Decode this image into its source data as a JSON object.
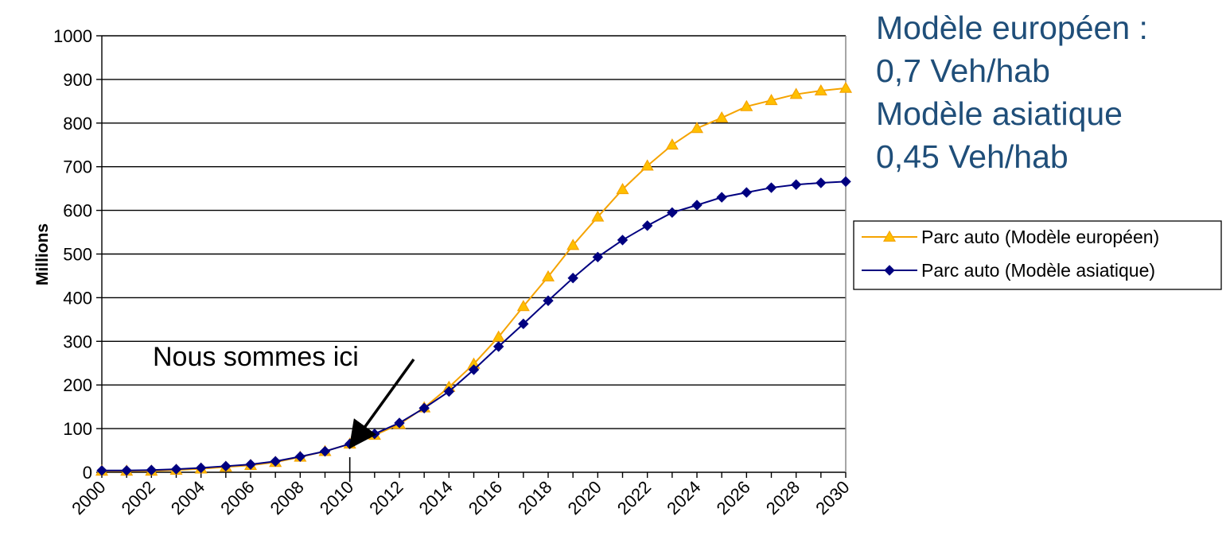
{
  "chart_data": {
    "type": "line",
    "title": "",
    "xlabel": "",
    "ylabel": "Millions",
    "ylim": [
      0,
      1000
    ],
    "yticks": [
      0,
      100,
      200,
      300,
      400,
      500,
      600,
      700,
      800,
      900,
      1000
    ],
    "xlim": [
      2000,
      2030
    ],
    "xticks": [
      2000,
      2002,
      2004,
      2006,
      2008,
      2010,
      2012,
      2014,
      2016,
      2018,
      2020,
      2022,
      2024,
      2026,
      2028,
      2030
    ],
    "grid": "horizontal",
    "legend_position": "right",
    "series": [
      {
        "name": "Parc auto (Modèle européen)",
        "color": "#f5a300",
        "marker": "triangle",
        "x": [
          2000,
          2001,
          2002,
          2003,
          2004,
          2005,
          2006,
          2007,
          2008,
          2009,
          2010,
          2011,
          2012,
          2013,
          2014,
          2015,
          2016,
          2017,
          2018,
          2019,
          2020,
          2021,
          2022,
          2023,
          2024,
          2025,
          2026,
          2027,
          2028,
          2029,
          2030
        ],
        "values": [
          3,
          3,
          3,
          5,
          8,
          12,
          16,
          23,
          35,
          48,
          65,
          85,
          110,
          148,
          195,
          248,
          310,
          380,
          448,
          520,
          585,
          648,
          702,
          750,
          788,
          812,
          838,
          852,
          866,
          874,
          880
        ]
      },
      {
        "name": "Parc auto (Modèle asiatique)",
        "color": "#000080",
        "marker": "diamond",
        "x": [
          2000,
          2001,
          2002,
          2003,
          2004,
          2005,
          2006,
          2007,
          2008,
          2009,
          2010,
          2011,
          2012,
          2013,
          2014,
          2015,
          2016,
          2017,
          2018,
          2019,
          2020,
          2021,
          2022,
          2023,
          2024,
          2025,
          2026,
          2027,
          2028,
          2029,
          2030
        ],
        "values": [
          4,
          4,
          5,
          7,
          10,
          14,
          18,
          25,
          36,
          48,
          65,
          88,
          113,
          147,
          185,
          235,
          288,
          340,
          393,
          445,
          493,
          532,
          565,
          595,
          612,
          630,
          641,
          652,
          659,
          663,
          666
        ]
      }
    ],
    "annotation": {
      "text": "Nous sommes ici",
      "arrow_x": 2010,
      "arrow_y": 60
    }
  },
  "info_box": {
    "lines": [
      "Modèle européen :",
      "0,7 Veh/hab",
      "Modèle asiatique",
      "0,45 Veh/hab"
    ],
    "color": "#1f4e79"
  }
}
